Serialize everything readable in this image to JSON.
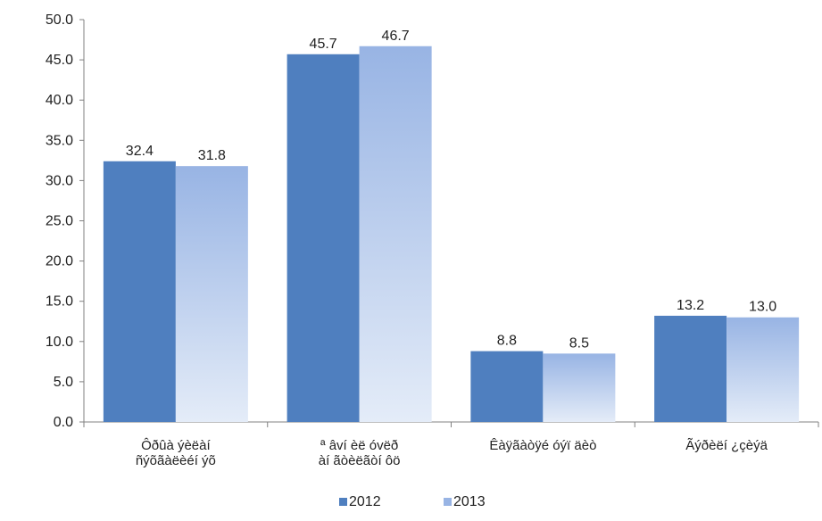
{
  "chart_data": {
    "type": "bar",
    "categories": [
      [
        "Ôðûà ýèëàí",
        "ñýõãàëèéí ýõ"
      ],
      [
        "ª âví èë óvëð",
        "àí  ãòèëãòí ôö"
      ],
      [
        "Êàÿãàòÿé óýï äèò"
      ],
      [
        "Ãýðèëí  ¿çèýä"
      ]
    ],
    "series": [
      {
        "name": "2012",
        "values": [
          32.4,
          45.7,
          8.8,
          13.2
        ],
        "labels": [
          "32.4",
          "45.7",
          "8.8",
          "13.2"
        ]
      },
      {
        "name": "2013",
        "values": [
          31.8,
          46.7,
          8.5,
          13.0
        ],
        "labels": [
          "31.8",
          "46.7",
          "8.5",
          "13.0"
        ]
      }
    ],
    "y_ticks": [
      "0.0",
      "5.0",
      "10.0",
      "15.0",
      "20.0",
      "25.0",
      "30.0",
      "35.0",
      "40.0",
      "45.0",
      "50.0"
    ],
    "ylim": [
      0,
      50
    ],
    "grid": false,
    "legend_position": "bottom-center",
    "colors": {
      "2012": "#4f7fbf",
      "2013_top": "#98b4e4",
      "2013_bottom": "#e4ecf8",
      "axis": "#808080"
    }
  }
}
